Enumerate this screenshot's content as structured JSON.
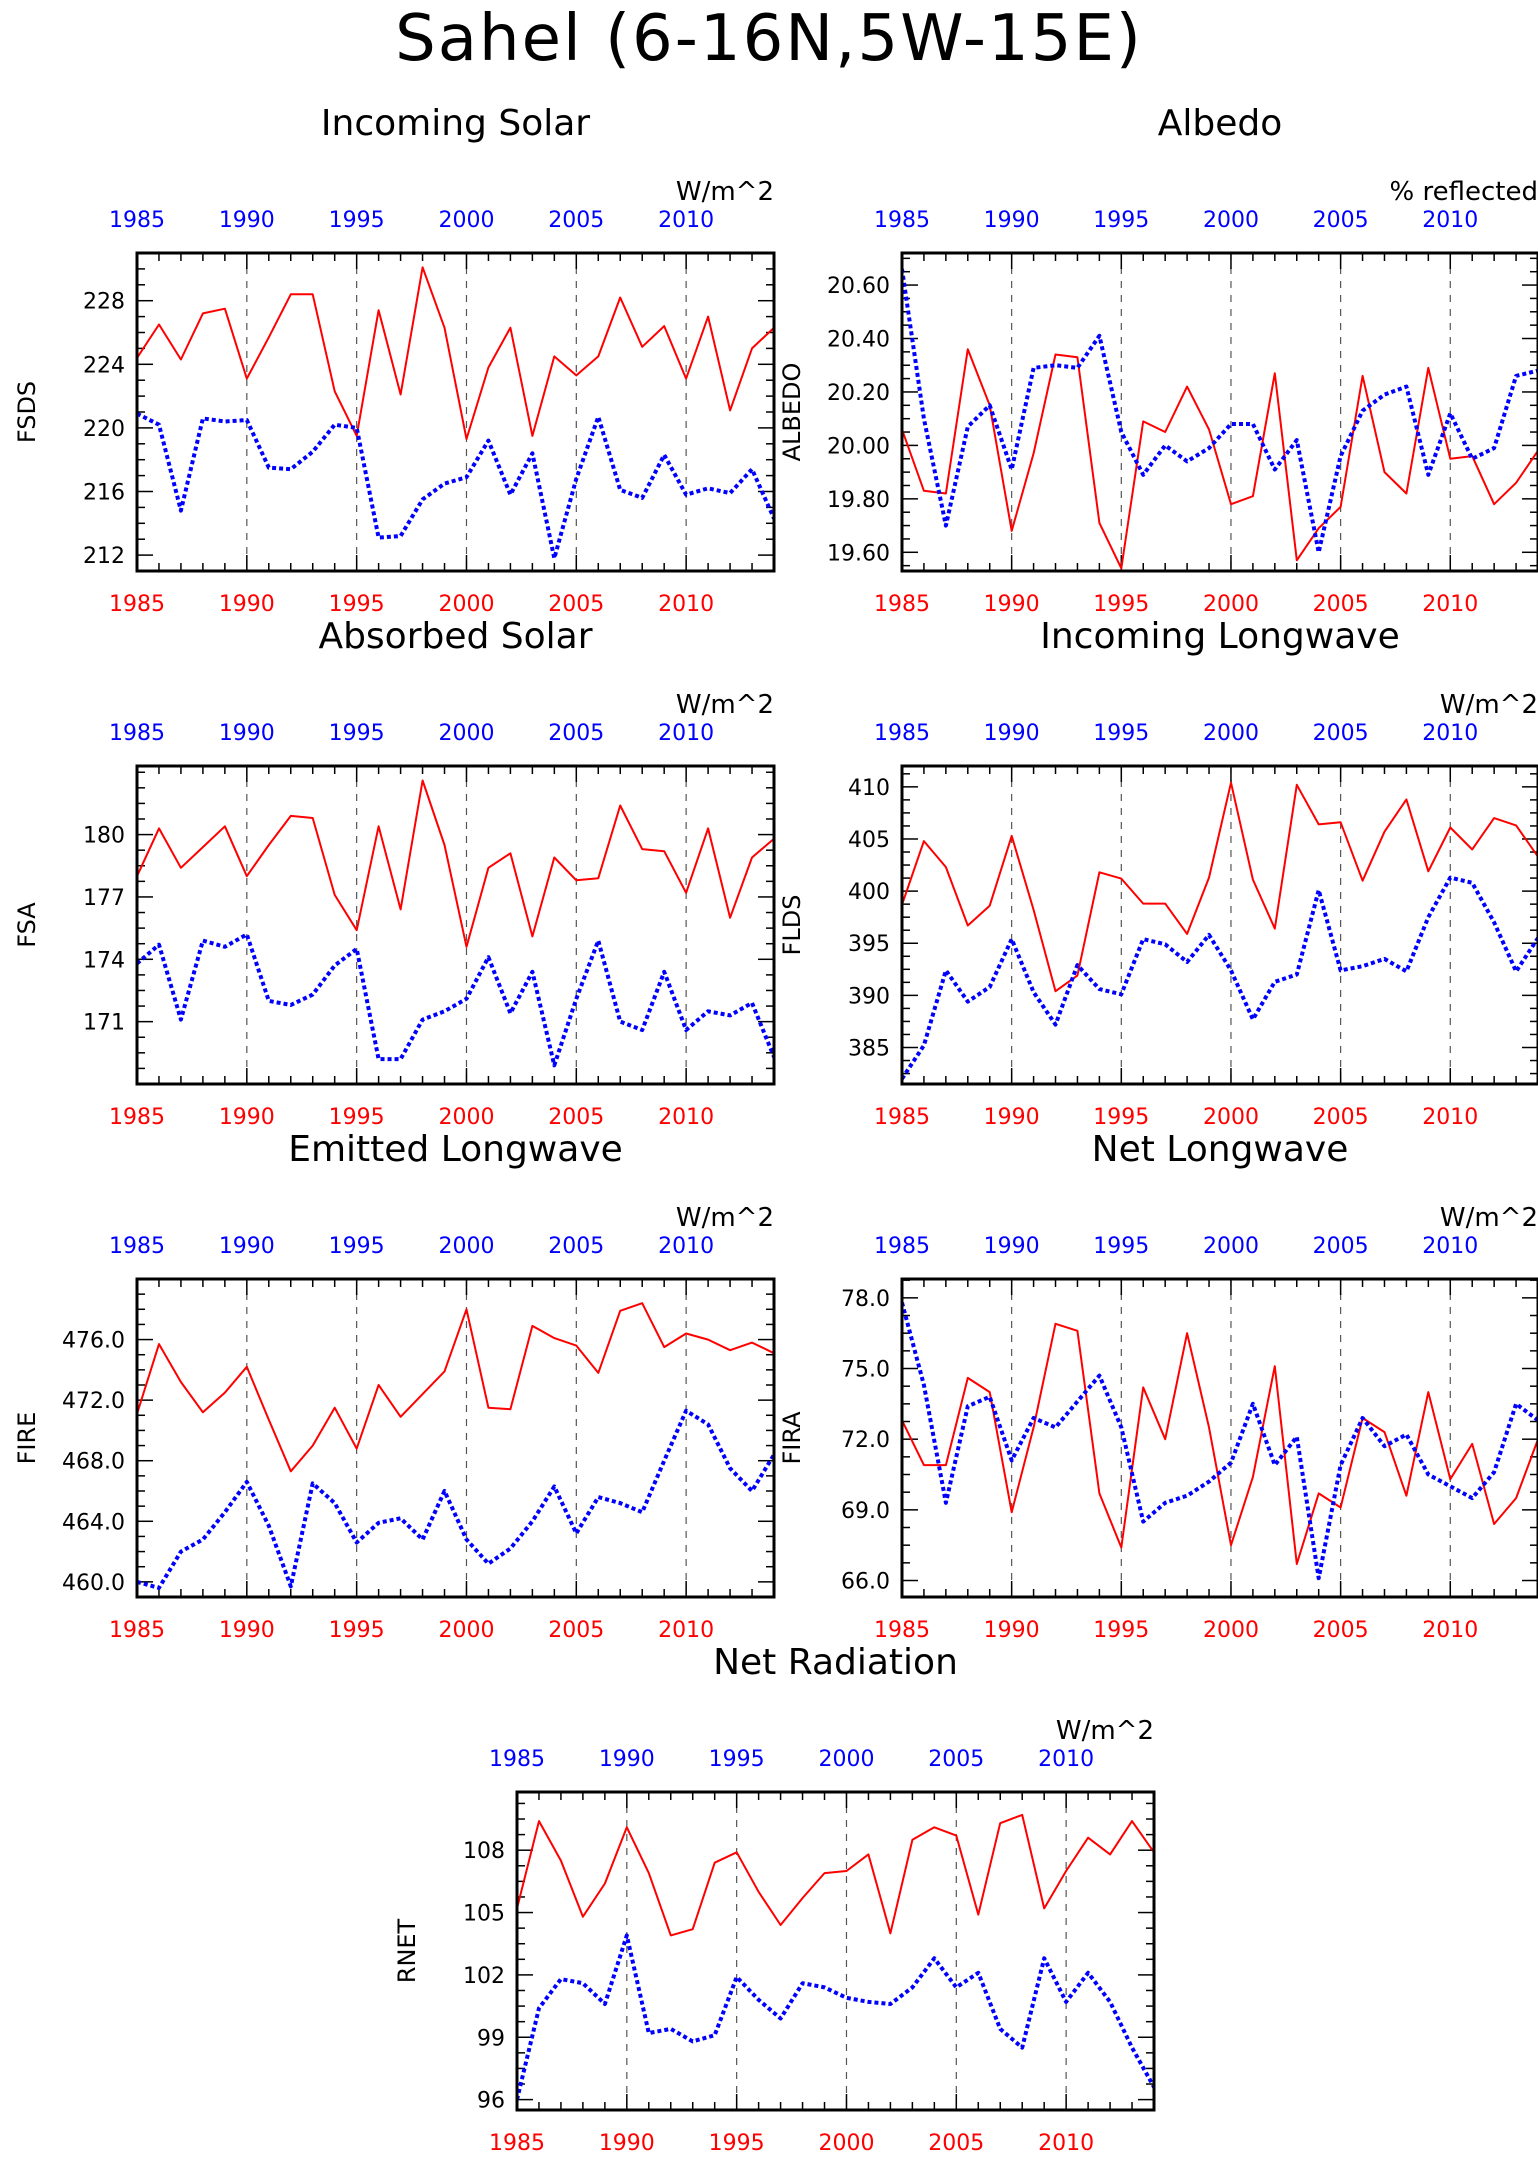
{
  "page_title": "Sahel (6-16N,5W-15E)",
  "colors": {
    "series_a": "#ff0000",
    "series_b": "#0000ff",
    "axis": "#000000",
    "grid": "#555555"
  },
  "chart_data": [
    {
      "type": "line",
      "title": "Incoming Solar",
      "units": "W/m^2",
      "ylabel": "FSDS",
      "x_bottom_ticks": [
        "1985",
        "1990",
        "1995",
        "2000",
        "2005",
        "2010"
      ],
      "x_top_ticks": [
        "1985",
        "1990",
        "1995",
        "2000",
        "2005",
        "2010"
      ],
      "xlim": [
        1985,
        2014
      ],
      "ylim": [
        211,
        231
      ],
      "y_ticks": [
        "212",
        "216",
        "220",
        "224",
        "228"
      ],
      "x": [
        1985,
        1986,
        1987,
        1988,
        1989,
        1990,
        1991,
        1992,
        1993,
        1994,
        1995,
        1996,
        1997,
        1998,
        1999,
        2000,
        2001,
        2002,
        2003,
        2004,
        2005,
        2006,
        2007,
        2008,
        2009,
        2010,
        2011,
        2012,
        2013,
        2014
      ],
      "series": [
        {
          "style": "solid",
          "values": [
            224.4,
            226.5,
            224.3,
            227.2,
            227.5,
            223.1,
            225.7,
            228.4,
            228.4,
            222.3,
            219.5,
            227.4,
            222.1,
            230.1,
            226.3,
            219.3,
            223.8,
            226.3,
            219.5,
            224.5,
            223.3,
            224.5,
            228.2,
            225.1,
            226.4,
            223.1,
            227.0,
            221.1,
            225.0,
            226.3
          ]
        },
        {
          "style": "dotted",
          "values": [
            220.9,
            220.2,
            214.8,
            220.6,
            220.4,
            220.5,
            217.5,
            217.4,
            218.5,
            220.2,
            220.0,
            213.1,
            213.2,
            215.5,
            216.5,
            216.9,
            219.2,
            215.8,
            218.4,
            211.8,
            216.8,
            220.7,
            216.1,
            215.6,
            218.3,
            215.8,
            216.2,
            215.9,
            217.4,
            214.3
          ]
        }
      ]
    },
    {
      "type": "line",
      "title": "Albedo",
      "units": "% reflected",
      "ylabel": "ALBEDO",
      "x_bottom_ticks": [
        "1985",
        "1990",
        "1995",
        "2000",
        "2005",
        "2010"
      ],
      "x_top_ticks": [
        "1985",
        "1990",
        "1995",
        "2000",
        "2005",
        "2010"
      ],
      "xlim": [
        1985,
        2014
      ],
      "ylim": [
        19.53,
        20.72
      ],
      "y_ticks": [
        "19.60",
        "19.80",
        "20.00",
        "20.20",
        "20.40",
        "20.60"
      ],
      "x": [
        1985,
        1986,
        1987,
        1988,
        1989,
        1990,
        1991,
        1992,
        1993,
        1994,
        1995,
        1996,
        1997,
        1998,
        1999,
        2000,
        2001,
        2002,
        2003,
        2004,
        2005,
        2006,
        2007,
        2008,
        2009,
        2010,
        2011,
        2012,
        2013,
        2014
      ],
      "series": [
        {
          "style": "solid",
          "values": [
            20.06,
            19.83,
            19.82,
            20.36,
            20.15,
            19.68,
            19.97,
            20.34,
            20.33,
            19.71,
            19.54,
            20.09,
            20.05,
            20.22,
            20.06,
            19.78,
            19.81,
            20.27,
            19.57,
            19.69,
            19.77,
            20.26,
            19.9,
            19.82,
            20.29,
            19.95,
            19.96,
            19.78,
            19.86,
            19.98
          ]
        },
        {
          "style": "dotted",
          "values": [
            20.66,
            20.1,
            19.7,
            20.07,
            20.15,
            19.91,
            20.29,
            20.3,
            20.29,
            20.41,
            20.05,
            19.89,
            20.0,
            19.94,
            19.99,
            20.08,
            20.08,
            19.91,
            20.02,
            19.6,
            19.96,
            20.13,
            20.19,
            20.22,
            19.89,
            20.12,
            19.95,
            19.99,
            20.26,
            20.28
          ]
        }
      ]
    },
    {
      "type": "line",
      "title": "Absorbed Solar",
      "units": "W/m^2",
      "ylabel": "FSA",
      "x_bottom_ticks": [
        "1985",
        "1990",
        "1995",
        "2000",
        "2005",
        "2010"
      ],
      "x_top_ticks": [
        "1985",
        "1990",
        "1995",
        "2000",
        "2005",
        "2010"
      ],
      "xlim": [
        1985,
        2014
      ],
      "ylim": [
        168,
        183.3
      ],
      "y_ticks": [
        "171",
        "174",
        "177",
        "180"
      ],
      "x": [
        1985,
        1986,
        1987,
        1988,
        1989,
        1990,
        1991,
        1992,
        1993,
        1994,
        1995,
        1996,
        1997,
        1998,
        1999,
        2000,
        2001,
        2002,
        2003,
        2004,
        2005,
        2006,
        2007,
        2008,
        2009,
        2010,
        2011,
        2012,
        2013,
        2014
      ],
      "series": [
        {
          "style": "solid",
          "values": [
            178.0,
            180.3,
            178.4,
            179.4,
            180.4,
            178.0,
            179.5,
            180.9,
            180.8,
            177.1,
            175.4,
            180.4,
            176.4,
            182.6,
            179.5,
            174.6,
            178.4,
            179.1,
            175.1,
            178.9,
            177.8,
            177.9,
            181.4,
            179.3,
            179.2,
            177.2,
            180.3,
            176.0,
            178.9,
            179.8
          ]
        },
        {
          "style": "dotted",
          "values": [
            173.8,
            174.7,
            171.1,
            174.9,
            174.6,
            175.2,
            172.0,
            171.8,
            172.3,
            173.7,
            174.5,
            169.2,
            169.2,
            171.1,
            171.5,
            172.1,
            174.1,
            171.4,
            173.4,
            168.9,
            172.1,
            174.9,
            171.0,
            170.6,
            173.4,
            170.6,
            171.5,
            171.3,
            171.9,
            169.3
          ]
        }
      ]
    },
    {
      "type": "line",
      "title": "Incoming Longwave",
      "units": "W/m^2",
      "ylabel": "FLDS",
      "x_bottom_ticks": [
        "1985",
        "1990",
        "1995",
        "2000",
        "2005",
        "2010"
      ],
      "x_top_ticks": [
        "1985",
        "1990",
        "1995",
        "2000",
        "2005",
        "2010"
      ],
      "xlim": [
        1985,
        2014
      ],
      "ylim": [
        381.5,
        412
      ],
      "y_ticks": [
        "385",
        "390",
        "395",
        "400",
        "405",
        "410"
      ],
      "x": [
        1985,
        1986,
        1987,
        1988,
        1989,
        1990,
        1991,
        1992,
        1993,
        1994,
        1995,
        1996,
        1997,
        1998,
        1999,
        2000,
        2001,
        2002,
        2003,
        2004,
        2005,
        2006,
        2007,
        2008,
        2009,
        2010,
        2011,
        2012,
        2013,
        2014
      ],
      "series": [
        {
          "style": "solid",
          "values": [
            398.7,
            404.8,
            402.3,
            396.7,
            398.6,
            405.3,
            398.2,
            390.4,
            391.9,
            401.8,
            401.2,
            398.8,
            398.8,
            395.9,
            401.3,
            410.4,
            401.1,
            396.4,
            410.2,
            406.4,
            406.6,
            401.0,
            405.7,
            408.8,
            401.9,
            406.1,
            404.0,
            407.0,
            406.3,
            403.3
          ]
        },
        {
          "style": "dotted",
          "values": [
            382.0,
            385.2,
            392.4,
            389.4,
            390.8,
            395.4,
            390.3,
            387.2,
            392.9,
            390.6,
            390.1,
            395.4,
            394.9,
            393.2,
            395.8,
            392.4,
            387.7,
            391.3,
            392.0,
            400.1,
            392.4,
            392.8,
            393.5,
            392.3,
            397.5,
            401.3,
            400.8,
            397.0,
            392.3,
            395.5
          ]
        }
      ]
    },
    {
      "type": "line",
      "title": "Emitted Longwave",
      "units": "W/m^2",
      "ylabel": "FIRE",
      "x_bottom_ticks": [
        "1985",
        "1990",
        "1995",
        "2000",
        "2005",
        "2010"
      ],
      "x_top_ticks": [
        "1985",
        "1990",
        "1995",
        "2000",
        "2005",
        "2010"
      ],
      "xlim": [
        1985,
        2014
      ],
      "ylim": [
        459,
        480
      ],
      "y_ticks": [
        "460.0",
        "464.0",
        "468.0",
        "472.0",
        "476.0"
      ],
      "x": [
        1985,
        1986,
        1987,
        1988,
        1989,
        1990,
        1991,
        1992,
        1993,
        1994,
        1995,
        1996,
        1997,
        1998,
        1999,
        2000,
        2001,
        2002,
        2003,
        2004,
        2005,
        2006,
        2007,
        2008,
        2009,
        2010,
        2011,
        2012,
        2013,
        2014
      ],
      "series": [
        {
          "style": "solid",
          "values": [
            471.1,
            475.7,
            473.2,
            471.2,
            472.5,
            474.2,
            470.7,
            467.3,
            469.0,
            471.5,
            468.8,
            473.0,
            470.9,
            472.4,
            473.9,
            478.0,
            471.5,
            471.4,
            476.9,
            476.1,
            475.6,
            473.8,
            477.9,
            478.4,
            475.5,
            476.4,
            476.0,
            475.3,
            475.8,
            475.1
          ]
        },
        {
          "style": "dotted",
          "values": [
            460.0,
            459.6,
            462.0,
            462.8,
            464.6,
            466.6,
            463.7,
            459.7,
            466.5,
            465.2,
            462.6,
            463.9,
            464.2,
            462.8,
            466.0,
            462.8,
            461.2,
            462.2,
            464.0,
            466.3,
            463.2,
            465.6,
            465.2,
            464.6,
            468.0,
            471.3,
            470.4,
            467.5,
            466.0,
            468.4
          ]
        }
      ]
    },
    {
      "type": "line",
      "title": "Net Longwave",
      "units": "W/m^2",
      "ylabel": "FIRA",
      "x_bottom_ticks": [
        "1985",
        "1990",
        "1995",
        "2000",
        "2005",
        "2010"
      ],
      "x_top_ticks": [
        "1985",
        "1990",
        "1995",
        "2000",
        "2005",
        "2010"
      ],
      "xlim": [
        1985,
        2014
      ],
      "ylim": [
        65.3,
        78.8
      ],
      "y_ticks": [
        "66.0",
        "69.0",
        "72.0",
        "75.0",
        "78.0"
      ],
      "x": [
        1985,
        1986,
        1987,
        1988,
        1989,
        1990,
        1991,
        1992,
        1993,
        1994,
        1995,
        1996,
        1997,
        1998,
        1999,
        2000,
        2001,
        2002,
        2003,
        2004,
        2005,
        2006,
        2007,
        2008,
        2009,
        2010,
        2011,
        2012,
        2013,
        2014
      ],
      "series": [
        {
          "style": "solid",
          "values": [
            72.8,
            70.9,
            70.9,
            74.6,
            74.0,
            68.9,
            72.5,
            76.9,
            76.6,
            69.7,
            67.4,
            74.2,
            72.0,
            76.5,
            72.5,
            67.5,
            70.4,
            75.1,
            66.7,
            69.7,
            69.1,
            72.9,
            72.3,
            69.6,
            74.0,
            70.3,
            71.8,
            68.4,
            69.5,
            72.0
          ]
        },
        {
          "style": "dotted",
          "values": [
            77.8,
            74.3,
            69.3,
            73.4,
            73.8,
            71.1,
            72.9,
            72.5,
            73.6,
            74.7,
            72.5,
            68.5,
            69.3,
            69.6,
            70.2,
            71.0,
            73.5,
            70.9,
            72.1,
            66.1,
            70.9,
            72.9,
            71.7,
            72.2,
            70.5,
            70.0,
            69.5,
            70.6,
            73.5,
            72.8
          ]
        }
      ]
    },
    {
      "type": "line",
      "title": "Net Radiation",
      "units": "W/m^2",
      "ylabel": "RNET",
      "x_bottom_ticks": [
        "1985",
        "1990",
        "1995",
        "2000",
        "2005",
        "2010"
      ],
      "x_top_ticks": [
        "1985",
        "1990",
        "1995",
        "2000",
        "2005",
        "2010"
      ],
      "xlim": [
        1985,
        2014
      ],
      "ylim": [
        95.5,
        110.8
      ],
      "y_ticks": [
        "96",
        "99",
        "102",
        "105",
        "108"
      ],
      "x": [
        1985,
        1986,
        1987,
        1988,
        1989,
        1990,
        1991,
        1992,
        1993,
        1994,
        1995,
        1996,
        1997,
        1998,
        1999,
        2000,
        2001,
        2002,
        2003,
        2004,
        2005,
        2006,
        2007,
        2008,
        2009,
        2010,
        2011,
        2012,
        2013,
        2014
      ],
      "series": [
        {
          "style": "solid",
          "values": [
            105.2,
            109.4,
            107.5,
            104.8,
            106.4,
            109.1,
            106.9,
            103.9,
            104.2,
            107.4,
            107.9,
            106.0,
            104.4,
            105.7,
            106.9,
            107.0,
            107.8,
            104.0,
            108.5,
            109.1,
            108.7,
            104.9,
            109.3,
            109.7,
            105.2,
            107.0,
            108.6,
            107.8,
            109.4,
            107.9
          ]
        },
        {
          "style": "dotted",
          "values": [
            96.0,
            100.4,
            101.8,
            101.6,
            100.6,
            103.9,
            99.2,
            99.4,
            98.8,
            99.1,
            101.9,
            100.8,
            99.9,
            101.6,
            101.4,
            100.9,
            100.7,
            100.6,
            101.4,
            102.8,
            101.4,
            102.1,
            99.4,
            98.5,
            102.8,
            100.7,
            102.1,
            100.7,
            98.5,
            96.6
          ]
        }
      ]
    }
  ]
}
